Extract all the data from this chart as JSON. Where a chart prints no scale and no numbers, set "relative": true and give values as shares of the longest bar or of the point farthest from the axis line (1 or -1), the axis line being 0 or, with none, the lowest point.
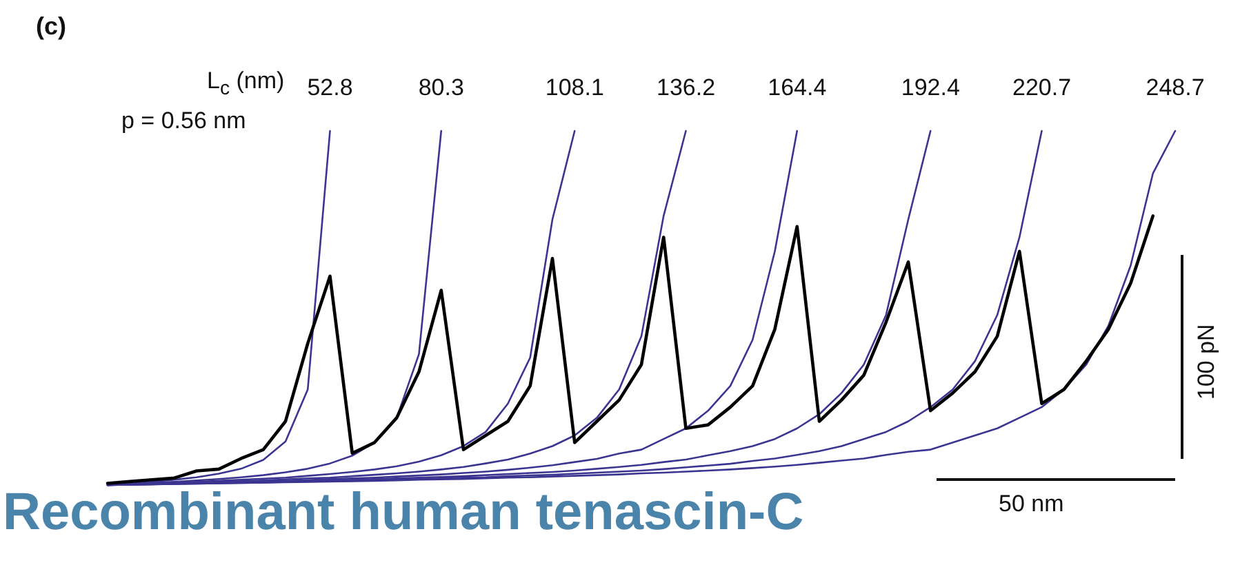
{
  "chart_data": {
    "type": "line",
    "relative": true,
    "marker": "none",
    "line_style": "solid",
    "tick_labels": false,
    "legend": false,
    "categories": [
      null,
      null,
      null,
      null,
      null,
      null,
      null,
      null,
      null,
      null,
      null,
      null,
      null,
      null,
      null,
      null,
      null,
      null,
      null,
      null,
      null,
      null,
      null,
      null,
      null,
      null,
      null,
      null,
      null,
      null,
      null,
      null,
      null,
      null,
      null,
      null,
      null,
      null,
      null,
      null,
      null,
      null,
      null,
      null,
      null,
      null,
      null,
      null,
      null
    ],
    "series": [
      {
        "color": "#000000",
        "values": [
          0.005,
          0.01,
          0.015,
          0.02,
          0.04,
          0.045,
          0.075,
          0.1,
          0.18,
          0.4,
          0.59,
          0.09,
          0.12,
          0.19,
          0.32,
          0.55,
          0.1,
          0.14,
          0.18,
          0.28,
          0.64,
          0.12,
          0.18,
          0.24,
          0.34,
          0.7,
          0.16,
          0.17,
          0.22,
          0.28,
          0.44,
          0.73,
          0.18,
          0.24,
          0.31,
          0.46,
          0.63,
          0.21,
          0.26,
          0.32,
          0.42,
          0.66,
          0.23,
          0.27,
          0.35,
          0.44,
          0.57,
          0.76,
          null
        ]
      },
      {
        "name": "52.8",
        "color": "#3b3591",
        "values": [
          0,
          0.004,
          0.009,
          0.015,
          0.022,
          0.032,
          0.046,
          0.071,
          0.123,
          0.27,
          1,
          null,
          null,
          null,
          null,
          null,
          null,
          null,
          null,
          null,
          null,
          null,
          null,
          null,
          null,
          null,
          null,
          null,
          null,
          null,
          null,
          null,
          null,
          null,
          null,
          null,
          null,
          null,
          null,
          null,
          null,
          null,
          null,
          null,
          null,
          null,
          null,
          null,
          null
        ]
      },
      {
        "name": "80.3",
        "color": "#3b3591",
        "values": [
          0,
          0.003,
          0.006,
          0.009,
          0.013,
          0.017,
          0.022,
          0.028,
          0.036,
          0.046,
          0.061,
          0.083,
          0.12,
          0.19,
          0.37,
          1,
          null,
          null,
          null,
          null,
          null,
          null,
          null,
          null,
          null,
          null,
          null,
          null,
          null,
          null,
          null,
          null,
          null,
          null,
          null,
          null,
          null,
          null,
          null,
          null,
          null,
          null,
          null,
          null,
          null,
          null,
          null,
          null,
          null
        ]
      },
      {
        "name": "108.1",
        "color": "#3b3591",
        "values": [
          0,
          0.002,
          0.004,
          0.007,
          0.009,
          0.012,
          0.015,
          0.018,
          0.021,
          0.026,
          0.031,
          0.037,
          0.044,
          0.053,
          0.066,
          0.084,
          0.11,
          0.15,
          0.23,
          0.36,
          0.75,
          1,
          null,
          null,
          null,
          null,
          null,
          null,
          null,
          null,
          null,
          null,
          null,
          null,
          null,
          null,
          null,
          null,
          null,
          null,
          null,
          null,
          null,
          null,
          null,
          null,
          null,
          null,
          null
        ]
      },
      {
        "name": "136.2",
        "color": "#3b3591",
        "values": [
          0,
          0.002,
          0.003,
          0.005,
          0.007,
          0.009,
          0.011,
          0.013,
          0.016,
          0.019,
          0.021,
          0.025,
          0.029,
          0.033,
          0.038,
          0.044,
          0.051,
          0.061,
          0.072,
          0.089,
          0.11,
          0.14,
          0.19,
          0.27,
          0.42,
          0.76,
          1,
          null,
          null,
          null,
          null,
          null,
          null,
          null,
          null,
          null,
          null,
          null,
          null,
          null,
          null,
          null,
          null,
          null,
          null,
          null,
          null,
          null,
          null
        ]
      },
      {
        "name": "164.4",
        "color": "#3b3591",
        "values": [
          0,
          0.001,
          0.003,
          0.004,
          0.006,
          0.007,
          0.009,
          0.011,
          0.012,
          0.014,
          0.017,
          0.019,
          0.021,
          0.024,
          0.027,
          0.03,
          0.034,
          0.038,
          0.043,
          0.049,
          0.056,
          0.065,
          0.074,
          0.089,
          0.1,
          0.13,
          0.16,
          0.21,
          0.28,
          0.41,
          0.66,
          1,
          null,
          null,
          null,
          null,
          null,
          null,
          null,
          null,
          null,
          null,
          null,
          null,
          null,
          null,
          null,
          null,
          null
        ]
      },
      {
        "name": "192.4",
        "color": "#3b3591",
        "values": [
          0,
          0.001,
          0.002,
          0.004,
          0.005,
          0.006,
          0.007,
          0.009,
          0.01,
          0.012,
          0.013,
          0.015,
          0.017,
          0.019,
          0.021,
          0.023,
          0.025,
          0.028,
          0.031,
          0.034,
          0.037,
          0.041,
          0.046,
          0.051,
          0.057,
          0.065,
          0.072,
          0.084,
          0.096,
          0.11,
          0.13,
          0.16,
          0.2,
          0.26,
          0.34,
          0.48,
          0.75,
          1,
          null,
          null,
          null,
          null,
          null,
          null,
          null,
          null,
          null,
          null,
          null
        ]
      },
      {
        "name": "220.7",
        "color": "#3b3591",
        "values": [
          0,
          0.001,
          0.002,
          0.003,
          0.004,
          0.005,
          0.006,
          0.007,
          0.009,
          0.01,
          0.011,
          0.012,
          0.014,
          0.016,
          0.017,
          0.019,
          0.021,
          0.022,
          0.025,
          0.027,
          0.029,
          0.032,
          0.035,
          0.038,
          0.041,
          0.045,
          0.05,
          0.055,
          0.06,
          0.068,
          0.075,
          0.085,
          0.096,
          0.11,
          0.13,
          0.15,
          0.18,
          0.22,
          0.27,
          0.35,
          0.48,
          0.7,
          1,
          null,
          null,
          null,
          null,
          null,
          null
        ]
      },
      {
        "name": "248.7",
        "color": "#3b3591",
        "values": [
          0,
          0.001,
          0.002,
          0.003,
          0.004,
          0.005,
          0.006,
          0.007,
          0.008,
          0.009,
          0.01,
          0.011,
          0.012,
          0.013,
          0.015,
          0.016,
          0.017,
          0.019,
          0.021,
          0.022,
          0.024,
          0.026,
          0.028,
          0.03,
          0.033,
          0.035,
          0.038,
          0.041,
          0.044,
          0.048,
          0.052,
          0.057,
          0.063,
          0.069,
          0.075,
          0.085,
          0.094,
          0.1,
          0.12,
          0.14,
          0.16,
          0.19,
          0.22,
          0.27,
          0.34,
          0.45,
          0.62,
          0.88,
          1
        ]
      }
    ],
    "annotations": [
      "(c)",
      "L$_{c}$ (nm)",
      "p = 0.56 nm",
      "100 pN",
      "50 nm",
      "Recombinant human tenascin-C"
    ]
  }
}
